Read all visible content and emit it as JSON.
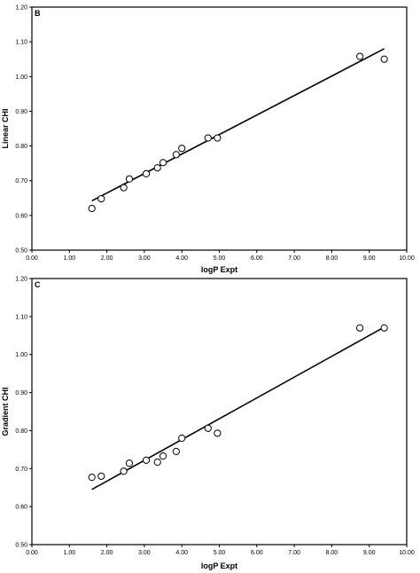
{
  "chart_data": [
    {
      "type": "scatter",
      "panel_label": "B",
      "xlabel": "logP Expt",
      "ylabel": "Linear CHI",
      "xlim": [
        0.0,
        10.0
      ],
      "ylim": [
        0.5,
        1.2
      ],
      "x_ticks": [
        "0.00",
        "1.00",
        "2.00",
        "3.00",
        "4.00",
        "5.00",
        "6.00",
        "7.00",
        "8.00",
        "9.00",
        "10.00"
      ],
      "y_ticks": [
        "0.50",
        "0.60",
        "0.70",
        "0.80",
        "0.90",
        "1.00",
        "1.10",
        "1.20"
      ],
      "grid": false,
      "points": [
        {
          "x": 1.6,
          "y": 0.62
        },
        {
          "x": 1.85,
          "y": 0.648
        },
        {
          "x": 2.45,
          "y": 0.68
        },
        {
          "x": 2.6,
          "y": 0.705
        },
        {
          "x": 3.05,
          "y": 0.72
        },
        {
          "x": 3.35,
          "y": 0.737
        },
        {
          "x": 3.5,
          "y": 0.752
        },
        {
          "x": 3.85,
          "y": 0.775
        },
        {
          "x": 4.0,
          "y": 0.793
        },
        {
          "x": 4.7,
          "y": 0.823
        },
        {
          "x": 4.95,
          "y": 0.823
        },
        {
          "x": 8.75,
          "y": 1.058
        },
        {
          "x": 9.4,
          "y": 1.05
        }
      ],
      "fit_line": {
        "x": [
          1.6,
          9.4
        ],
        "y": [
          0.642,
          1.08
        ]
      }
    },
    {
      "type": "scatter",
      "panel_label": "C",
      "xlabel": "logP Expt",
      "ylabel": "Gradient CHI",
      "xlim": [
        0.0,
        10.0
      ],
      "ylim": [
        0.5,
        1.2
      ],
      "x_ticks": [
        "0.00",
        "1.00",
        "2.00",
        "3.00",
        "4.00",
        "5.00",
        "6.00",
        "7.00",
        "8.00",
        "9.00",
        "10.00"
      ],
      "y_ticks": [
        "0.50",
        "0.60",
        "0.70",
        "0.80",
        "0.90",
        "1.00",
        "1.10",
        "1.20"
      ],
      "grid": false,
      "points": [
        {
          "x": 1.6,
          "y": 0.677
        },
        {
          "x": 1.85,
          "y": 0.68
        },
        {
          "x": 2.45,
          "y": 0.693
        },
        {
          "x": 2.6,
          "y": 0.714
        },
        {
          "x": 3.05,
          "y": 0.722
        },
        {
          "x": 3.35,
          "y": 0.717
        },
        {
          "x": 3.5,
          "y": 0.733
        },
        {
          "x": 3.85,
          "y": 0.745
        },
        {
          "x": 4.0,
          "y": 0.78
        },
        {
          "x": 4.7,
          "y": 0.806
        },
        {
          "x": 4.95,
          "y": 0.793
        },
        {
          "x": 8.75,
          "y": 1.07
        },
        {
          "x": 9.4,
          "y": 1.07
        }
      ],
      "fit_line": {
        "x": [
          1.6,
          9.4
        ],
        "y": [
          0.645,
          1.072
        ]
      }
    }
  ]
}
